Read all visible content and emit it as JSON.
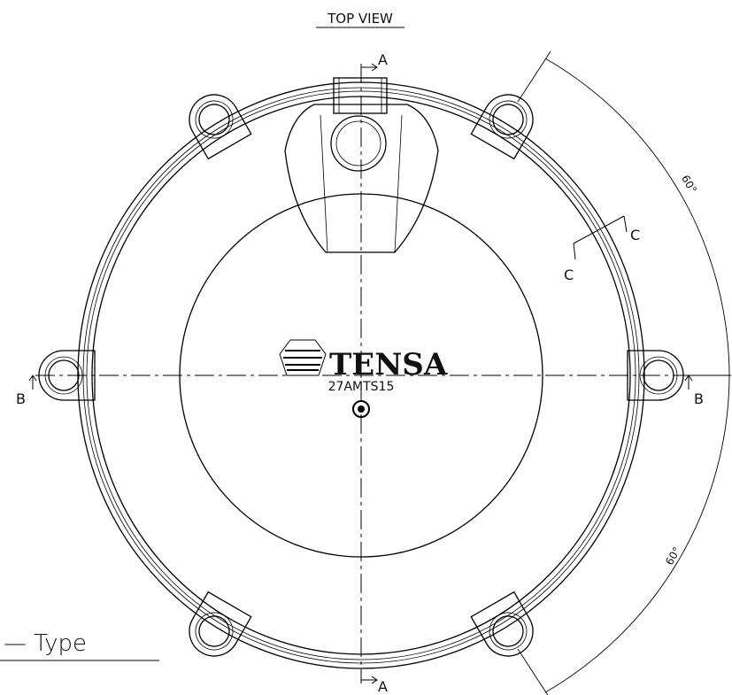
{
  "view_title": "TOP VIEW",
  "section_labels": {
    "a_top": "A",
    "a_bottom": "A",
    "b_left": "B",
    "b_right": "B",
    "c_upper": "C",
    "c_lower": "C"
  },
  "dimensions": {
    "upper_angle": "60°",
    "lower_angle": "60°"
  },
  "logo": {
    "brand": "TENSA",
    "model": "27AMTS15"
  },
  "type_label": "— Type"
}
